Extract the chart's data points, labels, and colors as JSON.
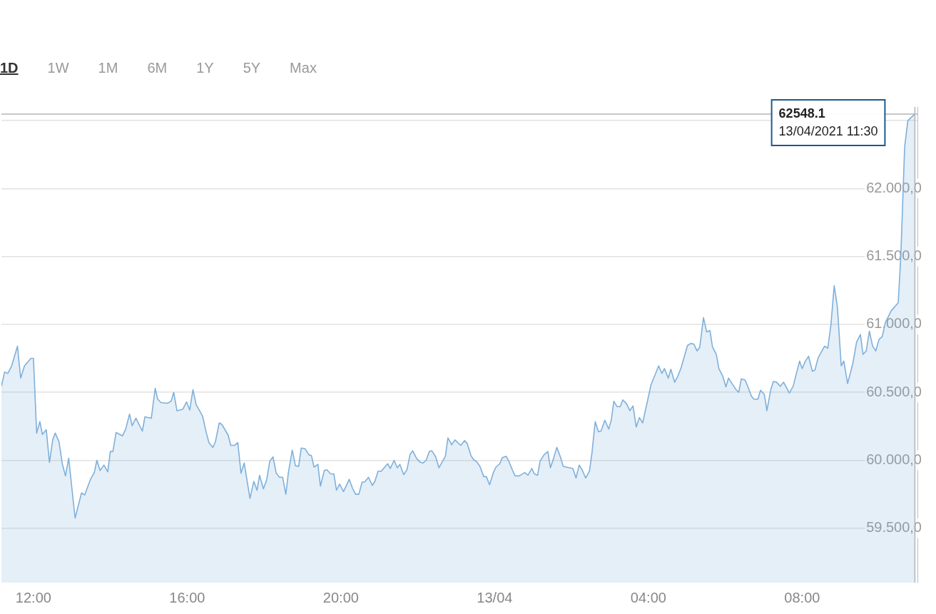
{
  "chart_data": {
    "type": "area",
    "x": [
      "2021-04-12T11:10",
      "2021-04-12T11:15",
      "2021-04-12T11:20",
      "2021-04-12T11:26",
      "2021-04-12T11:35",
      "2021-04-12T11:40",
      "2021-04-12T11:46",
      "2021-04-12T11:56",
      "2021-04-12T12:00",
      "2021-04-12T12:05",
      "2021-04-12T12:10",
      "2021-04-12T12:14",
      "2021-04-12T12:20",
      "2021-04-12T12:25",
      "2021-04-12T12:30",
      "2021-04-12T12:34",
      "2021-04-12T12:40",
      "2021-04-12T12:45",
      "2021-04-12T12:50",
      "2021-04-12T12:55",
      "2021-04-12T13:05",
      "2021-04-12T13:15",
      "2021-04-12T13:20",
      "2021-04-12T13:29",
      "2021-04-12T13:35",
      "2021-04-12T13:39",
      "2021-04-12T13:44",
      "2021-04-12T13:50",
      "2021-04-12T13:56",
      "2021-04-12T14:00",
      "2021-04-12T14:04",
      "2021-04-12T14:09",
      "2021-04-12T14:19",
      "2021-04-12T14:24",
      "2021-04-12T14:30",
      "2021-04-12T14:34",
      "2021-04-12T14:40",
      "2021-04-12T14:50",
      "2021-04-12T14:54",
      "2021-04-12T15:04",
      "2021-04-12T15:10",
      "2021-04-12T15:14",
      "2021-04-12T15:19",
      "2021-04-12T15:29",
      "2021-04-12T15:35",
      "2021-04-12T15:39",
      "2021-04-12T15:44",
      "2021-04-12T15:53",
      "2021-04-12T15:59",
      "2021-04-12T16:04",
      "2021-04-12T16:09",
      "2021-04-12T16:14",
      "2021-04-12T16:20",
      "2021-04-12T16:24",
      "2021-04-12T16:30",
      "2021-04-12T16:34",
      "2021-04-12T16:40",
      "2021-04-12T16:44",
      "2021-04-12T16:50",
      "2021-04-12T16:54",
      "2021-04-12T17:04",
      "2021-04-12T17:08",
      "2021-04-12T17:14",
      "2021-04-12T17:19",
      "2021-04-12T17:24",
      "2021-04-12T17:29",
      "2021-04-12T17:38",
      "2021-04-12T17:44",
      "2021-04-12T17:49",
      "2021-04-12T17:53",
      "2021-04-12T17:59",
      "2021-04-12T18:04",
      "2021-04-12T18:09",
      "2021-04-12T18:14",
      "2021-04-12T18:19",
      "2021-04-12T18:24",
      "2021-04-12T18:29",
      "2021-04-12T18:34",
      "2021-04-12T18:38",
      "2021-04-12T18:44",
      "2021-04-12T18:49",
      "2021-04-12T18:54",
      "2021-04-12T18:58",
      "2021-04-12T19:04",
      "2021-04-12T19:10",
      "2021-04-12T19:14",
      "2021-04-12T19:18",
      "2021-04-12T19:24",
      "2021-04-12T19:28",
      "2021-04-12T19:34",
      "2021-04-12T19:38",
      "2021-04-12T19:44",
      "2021-04-12T19:49",
      "2021-04-12T19:53",
      "2021-04-12T19:58",
      "2021-04-12T20:04",
      "2021-04-12T20:13",
      "2021-04-12T20:18",
      "2021-04-12T20:23",
      "2021-04-12T20:28",
      "2021-04-12T20:33",
      "2021-04-12T20:37",
      "2021-04-12T20:43",
      "2021-04-12T20:49",
      "2021-04-12T20:53",
      "2021-04-12T20:58",
      "2021-04-12T21:03",
      "2021-04-12T21:13",
      "2021-04-12T21:17",
      "2021-04-12T21:23",
      "2021-04-12T21:28",
      "2021-04-12T21:32",
      "2021-04-12T21:38",
      "2021-04-12T21:43",
      "2021-04-12T21:48",
      "2021-04-12T21:52",
      "2021-04-12T21:58",
      "2021-04-12T22:04",
      "2021-04-12T22:08",
      "2021-04-12T22:13",
      "2021-04-12T22:18",
      "2021-04-12T22:22",
      "2021-04-12T22:28",
      "2021-04-12T22:33",
      "2021-04-12T22:43",
      "2021-04-12T22:47",
      "2021-04-12T22:53",
      "2021-04-12T22:58",
      "2021-04-12T23:07",
      "2021-04-12T23:13",
      "2021-04-12T23:17",
      "2021-04-12T23:23",
      "2021-04-12T23:27",
      "2021-04-12T23:32",
      "2021-04-12T23:37",
      "2021-04-12T23:43",
      "2021-04-12T23:47",
      "2021-04-12T23:52",
      "2021-04-12T23:58",
      "2021-04-13T00:02",
      "2021-04-13T00:08",
      "2021-04-13T00:12",
      "2021-04-13T00:18",
      "2021-04-13T00:22",
      "2021-04-13T00:28",
      "2021-04-13T00:32",
      "2021-04-13T00:38",
      "2021-04-13T00:47",
      "2021-04-13T00:52",
      "2021-04-13T00:58",
      "2021-04-13T01:02",
      "2021-04-13T01:07",
      "2021-04-13T01:11",
      "2021-04-13T01:17",
      "2021-04-13T01:23",
      "2021-04-13T01:27",
      "2021-04-13T01:32",
      "2021-04-13T01:37",
      "2021-04-13T01:43",
      "2021-04-13T01:47",
      "2021-04-13T01:57",
      "2021-04-13T02:02",
      "2021-04-13T02:07",
      "2021-04-13T02:12",
      "2021-04-13T02:17",
      "2021-04-13T02:22",
      "2021-04-13T02:28",
      "2021-04-13T02:32",
      "2021-04-13T02:37",
      "2021-04-13T02:42",
      "2021-04-13T02:46",
      "2021-04-13T02:52",
      "2021-04-13T02:58",
      "2021-04-13T03:02",
      "2021-04-13T03:06",
      "2021-04-13T03:11",
      "2021-04-13T03:16",
      "2021-04-13T03:20",
      "2021-04-13T03:26",
      "2021-04-13T03:31",
      "2021-04-13T03:36",
      "2021-04-13T03:41",
      "2021-04-13T03:46",
      "2021-04-13T03:51",
      "2021-04-13T04:04",
      "2021-04-13T04:16",
      "2021-04-13T04:21",
      "2021-04-13T04:25",
      "2021-04-13T04:31",
      "2021-04-13T04:35",
      "2021-04-13T04:41",
      "2021-04-13T04:46",
      "2021-04-13T04:51",
      "2021-04-13T05:01",
      "2021-04-13T05:06",
      "2021-04-13T05:11",
      "2021-04-13T05:16",
      "2021-04-13T05:20",
      "2021-04-13T05:26",
      "2021-04-13T05:31",
      "2021-04-13T05:36",
      "2021-04-13T05:40",
      "2021-04-13T05:46",
      "2021-04-13T05:50",
      "2021-04-13T05:56",
      "2021-04-13T06:01",
      "2021-04-13T06:05",
      "2021-04-13T06:16",
      "2021-04-13T06:21",
      "2021-04-13T06:25",
      "2021-04-13T06:31",
      "2021-04-13T06:35",
      "2021-04-13T06:41",
      "2021-04-13T06:45",
      "2021-04-13T06:51",
      "2021-04-13T06:55",
      "2021-04-13T07:01",
      "2021-04-13T07:05",
      "2021-04-13T07:11",
      "2021-04-13T07:15",
      "2021-04-13T07:20",
      "2021-04-13T07:26",
      "2021-04-13T07:31",
      "2021-04-13T07:40",
      "2021-04-13T07:46",
      "2021-04-13T07:50",
      "2021-04-13T07:56",
      "2021-04-13T08:00",
      "2021-04-13T08:05",
      "2021-04-13T08:10",
      "2021-04-13T08:16",
      "2021-04-13T08:20",
      "2021-04-13T08:25",
      "2021-04-13T08:35",
      "2021-04-13T08:40",
      "2021-04-13T08:45",
      "2021-04-13T08:50",
      "2021-04-13T08:55",
      "2021-04-13T09:01",
      "2021-04-13T09:05",
      "2021-04-13T09:11",
      "2021-04-13T09:19",
      "2021-04-13T09:25",
      "2021-04-13T09:31",
      "2021-04-13T09:35",
      "2021-04-13T09:40",
      "2021-04-13T09:45",
      "2021-04-13T09:50",
      "2021-04-13T09:55",
      "2021-04-13T10:00",
      "2021-04-13T10:05",
      "2021-04-13T10:10",
      "2021-04-13T10:19",
      "2021-04-13T10:30",
      "2021-04-13T10:34",
      "2021-04-13T10:40",
      "2021-04-13T10:45",
      "2021-04-13T10:56"
    ],
    "series": [
      {
        "color": "#7fb0da",
        "values": [
          60545,
          60650,
          60640,
          60695,
          60840,
          60605,
          60695,
          60750,
          60750,
          60200,
          60285,
          60190,
          60225,
          59985,
          60150,
          60200,
          60135,
          59975,
          59885,
          60015,
          59575,
          59760,
          59745,
          59860,
          59910,
          60000,
          59925,
          59965,
          59915,
          60065,
          60065,
          60205,
          60180,
          60230,
          60340,
          60255,
          60310,
          60215,
          60320,
          60310,
          60530,
          60450,
          60425,
          60420,
          60435,
          60500,
          60365,
          60375,
          60430,
          60370,
          60520,
          60410,
          60360,
          60325,
          60200,
          60130,
          60095,
          60135,
          60275,
          60265,
          60185,
          60110,
          60110,
          60130,
          59905,
          59980,
          59720,
          59845,
          59780,
          59890,
          59790,
          59855,
          59995,
          60025,
          59905,
          59875,
          59875,
          59750,
          59910,
          60075,
          59960,
          59955,
          60090,
          60085,
          60040,
          60035,
          59950,
          59970,
          59810,
          59925,
          59930,
          59900,
          59900,
          59780,
          59825,
          59770,
          59860,
          59795,
          59750,
          59750,
          59840,
          59840,
          59875,
          59815,
          59845,
          59920,
          59920,
          59975,
          59940,
          60000,
          59945,
          59970,
          59895,
          59930,
          60045,
          60070,
          60015,
          59985,
          59980,
          60000,
          60065,
          60070,
          60025,
          59945,
          60030,
          60165,
          60115,
          60150,
          60110,
          60145,
          60125,
          60035,
          60005,
          59990,
          59955,
          59880,
          59880,
          59820,
          59910,
          59950,
          59975,
          60020,
          60030,
          59995,
          59925,
          59885,
          59885,
          59910,
          59890,
          59940,
          59900,
          59890,
          59995,
          60040,
          60065,
          59945,
          60015,
          60095,
          60020,
          59955,
          59945,
          59940,
          59870,
          59965,
          59925,
          59870,
          59920,
          60060,
          60285,
          60210,
          60215,
          60295,
          60230,
          60295,
          60435,
          60395,
          60395,
          60445,
          60415,
          60365,
          60400,
          60245,
          60315,
          60275,
          60555,
          60695,
          60640,
          60675,
          60605,
          60670,
          60575,
          60620,
          60680,
          60845,
          60860,
          60855,
          60805,
          60830,
          61050,
          60945,
          60955,
          60835,
          60780,
          60675,
          60620,
          60540,
          60605,
          60525,
          60500,
          60600,
          60590,
          60545,
          60470,
          60450,
          60450,
          60515,
          60485,
          60365,
          60520,
          60580,
          60575,
          60545,
          60575,
          60495,
          60545,
          60620,
          60730,
          60675,
          60730,
          60765,
          60655,
          60665,
          60755,
          60840,
          60825,
          61000,
          61285,
          61130,
          60695,
          60730,
          60565,
          60710,
          60870,
          60925,
          60780,
          60805,
          60950,
          60840,
          60805,
          60890,
          60910,
          61015,
          61100,
          61160,
          61500,
          62305,
          62500,
          62548.1
        ]
      }
    ],
    "xlim": [
      "2021-04-12T11:10",
      "2021-04-13T11:00"
    ],
    "xticks": [
      {
        "value": "2021-04-12T12:00",
        "label": "12:00"
      },
      {
        "value": "2021-04-12T16:00",
        "label": "16:00"
      },
      {
        "value": "2021-04-12T20:00",
        "label": "20:00"
      },
      {
        "value": "2021-04-13T00:00",
        "label": "13/04"
      },
      {
        "value": "2021-04-13T04:00",
        "label": "04:00"
      },
      {
        "value": "2021-04-13T08:00",
        "label": "08:00"
      }
    ],
    "ylim": [
      59100,
      62600
    ],
    "yticks": [
      {
        "value": 59500,
        "label": "59.500,0"
      },
      {
        "value": 60000,
        "label": "60.000,0"
      },
      {
        "value": 60500,
        "label": "60.500,0"
      },
      {
        "value": 61000,
        "label": "61.000,0"
      },
      {
        "value": 61500,
        "label": "61.500,0"
      },
      {
        "value": 62000,
        "label": "62.000,0"
      },
      {
        "value": 62500,
        "label": null
      }
    ],
    "grid": "y",
    "ref_lines": [
      {
        "axis": "y",
        "value": 62548.1,
        "color": "#b4b4b4"
      },
      {
        "axis": "x",
        "value": "2021-04-13T10:56",
        "color": "#b4b4b4"
      }
    ],
    "annotations": [
      "1D",
      "1W",
      "1M",
      "6M",
      "1Y",
      "5Y",
      "Max",
      {
        "text": "62548.1\n13/04/2021 11:30",
        "x": "2021-04-13T10:56",
        "y": 62548.1
      }
    ]
  }
}
